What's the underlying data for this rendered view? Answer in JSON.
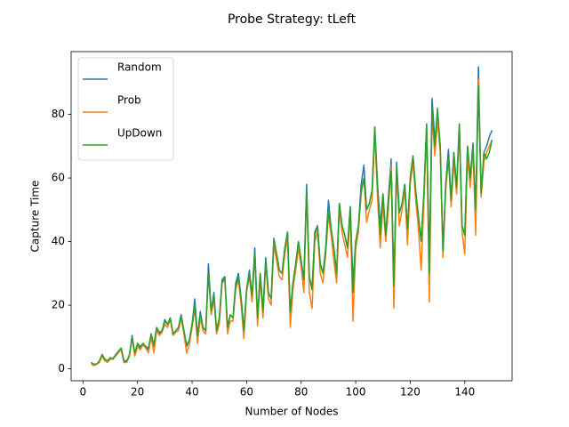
{
  "chart_data": {
    "type": "line",
    "title": "Probe Strategy: tLeft",
    "xlabel": "Number of Nodes",
    "ylabel": "Capture Time",
    "x": [
      3,
      4,
      5,
      6,
      7,
      8,
      9,
      10,
      11,
      12,
      13,
      14,
      15,
      16,
      17,
      18,
      19,
      20,
      21,
      22,
      23,
      24,
      25,
      26,
      27,
      28,
      29,
      30,
      31,
      32,
      33,
      34,
      35,
      36,
      37,
      38,
      39,
      40,
      41,
      42,
      43,
      44,
      45,
      46,
      47,
      48,
      49,
      50,
      51,
      52,
      53,
      54,
      55,
      56,
      57,
      58,
      59,
      60,
      61,
      62,
      63,
      64,
      65,
      66,
      67,
      68,
      69,
      70,
      71,
      72,
      73,
      74,
      75,
      76,
      77,
      78,
      79,
      80,
      81,
      82,
      83,
      84,
      85,
      86,
      87,
      88,
      89,
      90,
      91,
      92,
      93,
      94,
      95,
      96,
      97,
      98,
      99,
      100,
      101,
      102,
      103,
      104,
      105,
      106,
      107,
      108,
      109,
      110,
      111,
      112,
      113,
      114,
      115,
      116,
      117,
      118,
      119,
      120,
      121,
      122,
      123,
      124,
      125,
      126,
      127,
      128,
      129,
      130,
      131,
      132,
      133,
      134,
      135,
      136,
      137,
      138,
      139,
      140,
      141,
      142,
      143,
      144,
      145,
      146,
      147,
      148,
      149,
      150
    ],
    "series": [
      {
        "name": "Random",
        "color": "#1f77b4",
        "values": [
          2,
          1,
          1.5,
          2,
          4.5,
          3,
          2.5,
          3.5,
          3,
          4.5,
          5.5,
          6.5,
          2.5,
          2,
          4,
          10.5,
          4.5,
          8,
          6.5,
          8,
          7,
          6,
          11,
          7,
          13,
          11,
          12,
          15.5,
          14,
          16,
          11,
          12,
          13,
          17,
          12,
          7,
          9,
          14,
          22,
          10,
          18,
          13,
          12,
          33,
          18,
          24,
          12,
          16,
          28,
          29,
          13,
          17,
          16,
          27,
          30,
          22,
          12,
          25,
          31,
          23,
          38,
          16,
          30,
          18,
          35,
          24,
          22,
          41,
          36,
          31,
          30,
          38,
          43,
          17,
          27,
          33,
          40,
          34,
          28,
          58,
          29,
          25,
          43,
          45,
          33,
          30,
          38,
          53,
          44,
          38,
          30,
          52,
          45,
          42,
          38,
          51,
          27,
          40,
          45,
          58,
          64,
          50,
          52,
          56,
          76,
          58,
          45,
          55,
          42,
          54,
          66,
          26,
          65,
          49,
          52,
          58,
          44,
          60,
          67,
          56,
          48,
          40,
          55,
          77,
          33,
          85,
          72,
          80,
          70,
          37,
          58,
          69,
          53,
          68,
          57,
          77,
          45,
          42,
          70,
          60,
          71,
          50,
          95,
          55,
          68,
          70,
          73,
          75
        ]
      },
      {
        "name": "Prob",
        "color": "#ff7f0e",
        "values": [
          1.5,
          1,
          1.5,
          2,
          4,
          2.5,
          2,
          3,
          3.5,
          4,
          5,
          6,
          2,
          2,
          4.5,
          9.5,
          4,
          7,
          6,
          7.5,
          6.5,
          5,
          10,
          5,
          12,
          10.5,
          11.5,
          14,
          13,
          15.5,
          10.5,
          11.5,
          12,
          16,
          11,
          5,
          7.5,
          13,
          19,
          8,
          16,
          12,
          11,
          30,
          17,
          22,
          11,
          14,
          27,
          28,
          11,
          15,
          15,
          25,
          28,
          20,
          9.5,
          24,
          29,
          21,
          36,
          13.5,
          28,
          16,
          33,
          22,
          20,
          39,
          34,
          29,
          28,
          36,
          41,
          13,
          25,
          31,
          38,
          32,
          24,
          56,
          24,
          19,
          40,
          43,
          30,
          27,
          36,
          48,
          42,
          34,
          27,
          50,
          43,
          39,
          35,
          49,
          15,
          38,
          43,
          55,
          60,
          46,
          50,
          53,
          74,
          54,
          38,
          52,
          40,
          50,
          64,
          19,
          63,
          45,
          50,
          56,
          39,
          58,
          65,
          53,
          44,
          31,
          52,
          75,
          21,
          80,
          67,
          78,
          68,
          35,
          56,
          66,
          51,
          65,
          55,
          75,
          43,
          36,
          67,
          57,
          69,
          42,
          91,
          54,
          65,
          68,
          70,
          72
        ]
      },
      {
        "name": "UpDown",
        "color": "#2ca02c",
        "values": [
          2,
          1.5,
          1.5,
          2.5,
          4.5,
          3,
          2.5,
          3.5,
          3,
          4.5,
          5.5,
          6.5,
          2.5,
          2.5,
          4,
          10,
          5,
          8,
          7,
          8,
          7,
          6.5,
          11,
          7.5,
          13,
          11.5,
          12,
          15,
          14,
          16,
          11,
          12,
          13,
          16.5,
          12,
          7.5,
          9,
          14,
          20,
          10.5,
          17,
          13,
          12,
          30,
          18,
          23,
          12,
          16,
          27,
          29,
          13,
          17,
          16,
          26,
          29,
          22,
          12,
          25,
          30,
          23,
          36,
          16,
          30,
          18,
          34,
          24,
          22,
          41,
          36,
          31,
          30,
          38,
          43,
          18,
          27,
          33,
          40,
          34,
          28,
          56,
          29,
          25,
          42,
          45,
          33,
          30,
          37,
          50,
          44,
          38,
          30,
          52,
          45,
          42,
          38,
          51,
          24,
          40,
          45,
          56,
          60,
          50,
          52,
          56,
          76,
          58,
          42,
          55,
          42,
          54,
          62,
          26,
          64,
          49,
          52,
          58,
          44,
          60,
          67,
          56,
          48,
          40,
          55,
          77,
          30,
          82,
          70,
          82,
          70,
          37,
          58,
          66,
          53,
          68,
          57,
          77,
          45,
          42,
          70,
          60,
          70,
          50,
          89,
          55,
          68,
          66,
          68,
          72
        ]
      }
    ],
    "xlim": [
      -4.35,
      157.35
    ],
    "xticks": [
      0,
      20,
      40,
      60,
      80,
      100,
      120,
      140
    ],
    "ylim": [
      -3.75,
      99.75
    ],
    "yticks": [
      0,
      20,
      40,
      60,
      80
    ],
    "grid": false,
    "legend": "upper left"
  }
}
